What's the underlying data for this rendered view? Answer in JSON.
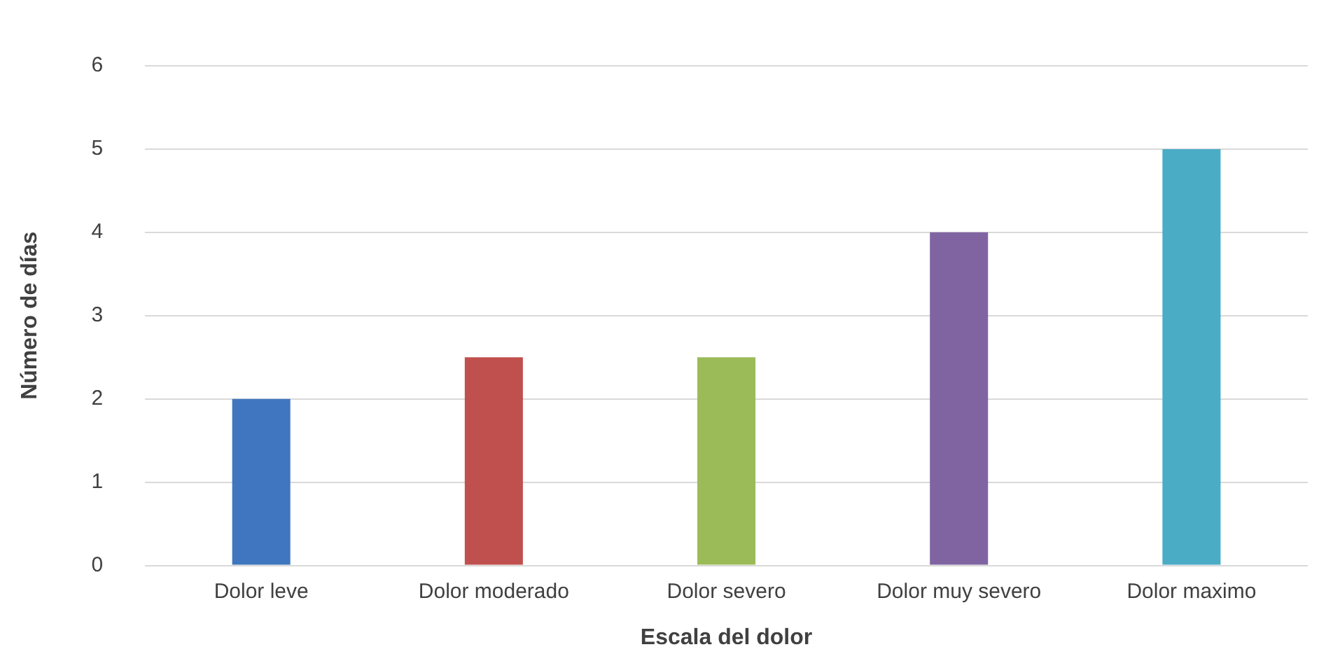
{
  "chart_data": {
    "type": "bar",
    "xlabel": "Escala del dolor",
    "ylabel": "Número de días",
    "categories": [
      "Dolor leve",
      "Dolor moderado",
      "Dolor severo",
      "Dolor muy severo",
      "Dolor maximo"
    ],
    "values": [
      2,
      2.5,
      2.5,
      4,
      5
    ],
    "colors": [
      "#3f76bf",
      "#c0504d",
      "#9bbb59",
      "#8064a2",
      "#4bacc6"
    ],
    "ylim": [
      0,
      6
    ],
    "yticks": [
      0,
      1,
      2,
      3,
      4,
      5,
      6
    ],
    "grid": "y",
    "legend": false
  }
}
